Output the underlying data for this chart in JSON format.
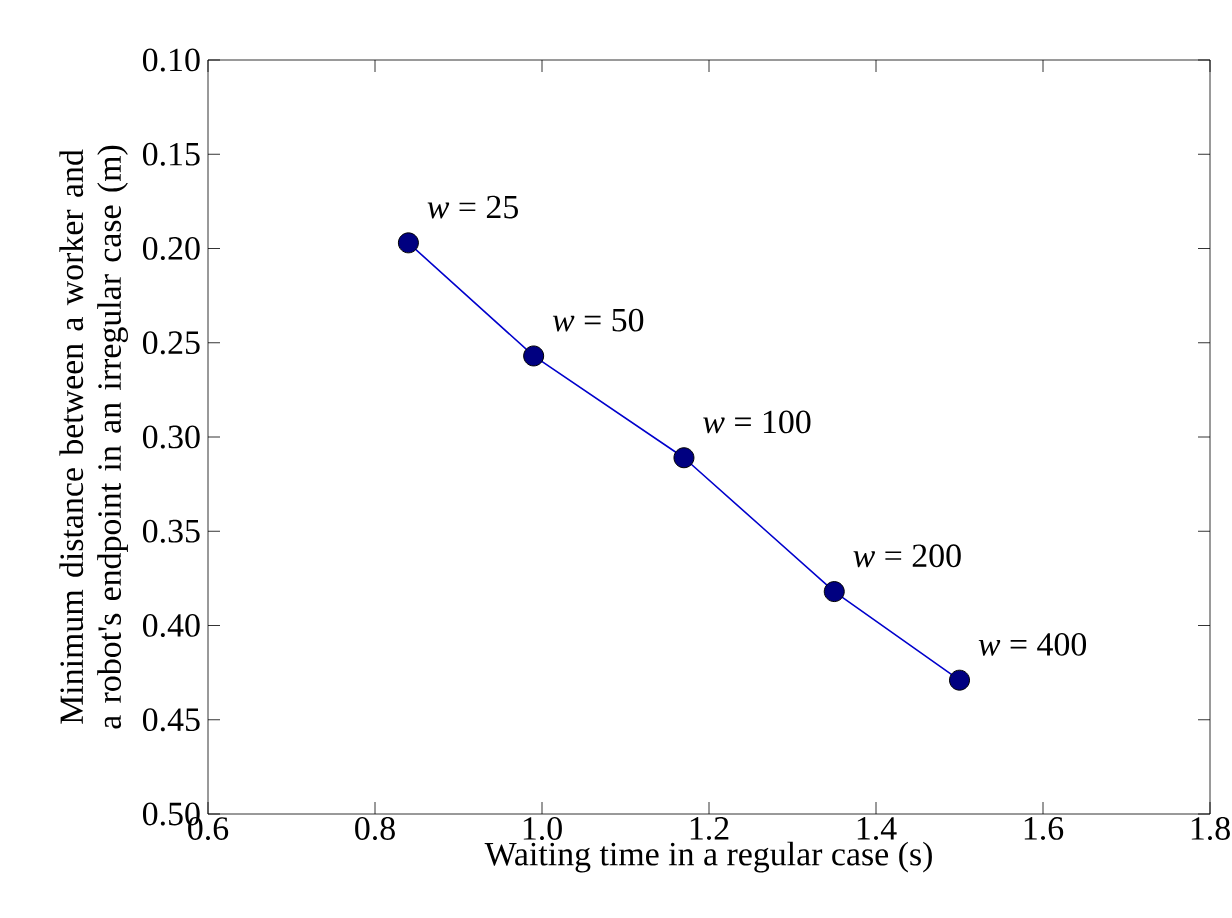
{
  "chart_data": {
    "type": "line",
    "xlabel": "Waiting time in a regular case (s)",
    "ylabel": "Minimum distance between a worker and a robot's endpoint in an irregular case (m)",
    "x": [
      0.84,
      0.99,
      1.17,
      1.35,
      1.5
    ],
    "series": [
      {
        "color": "#000080",
        "values": [
          0.197,
          0.257,
          0.311,
          0.382,
          0.429
        ]
      }
    ],
    "marker": "circle",
    "line_style": "solid",
    "xlim": [
      0.6,
      1.8
    ],
    "ylim": [
      0.5,
      0.1
    ],
    "xticks": [
      0.6,
      0.8,
      {
        "value": 1.0,
        "label": "1.0"
      },
      1.2,
      1.4,
      1.6,
      1.8
    ],
    "yticks": [
      {
        "value": 0.1,
        "label": "0.10"
      },
      0.15,
      {
        "value": 0.2,
        "label": "0.20"
      },
      0.25,
      {
        "value": 0.3,
        "label": "0.30"
      },
      0.35,
      {
        "value": 0.4,
        "label": "0.40"
      },
      0.45,
      {
        "value": 0.5,
        "label": "0.50"
      }
    ],
    "annotations": [
      {
        "text": "*w* = 25",
        "x": 0.84,
        "y": 0.197
      },
      {
        "text": "*w* = 50",
        "x": 0.99,
        "y": 0.257
      },
      {
        "text": "*w* = 100",
        "x": 1.17,
        "y": 0.311
      },
      {
        "text": "*w* = 200",
        "x": 1.35,
        "y": 0.382
      },
      {
        "text": "*w* = 400",
        "x": 1.5,
        "y": 0.429
      }
    ]
  }
}
